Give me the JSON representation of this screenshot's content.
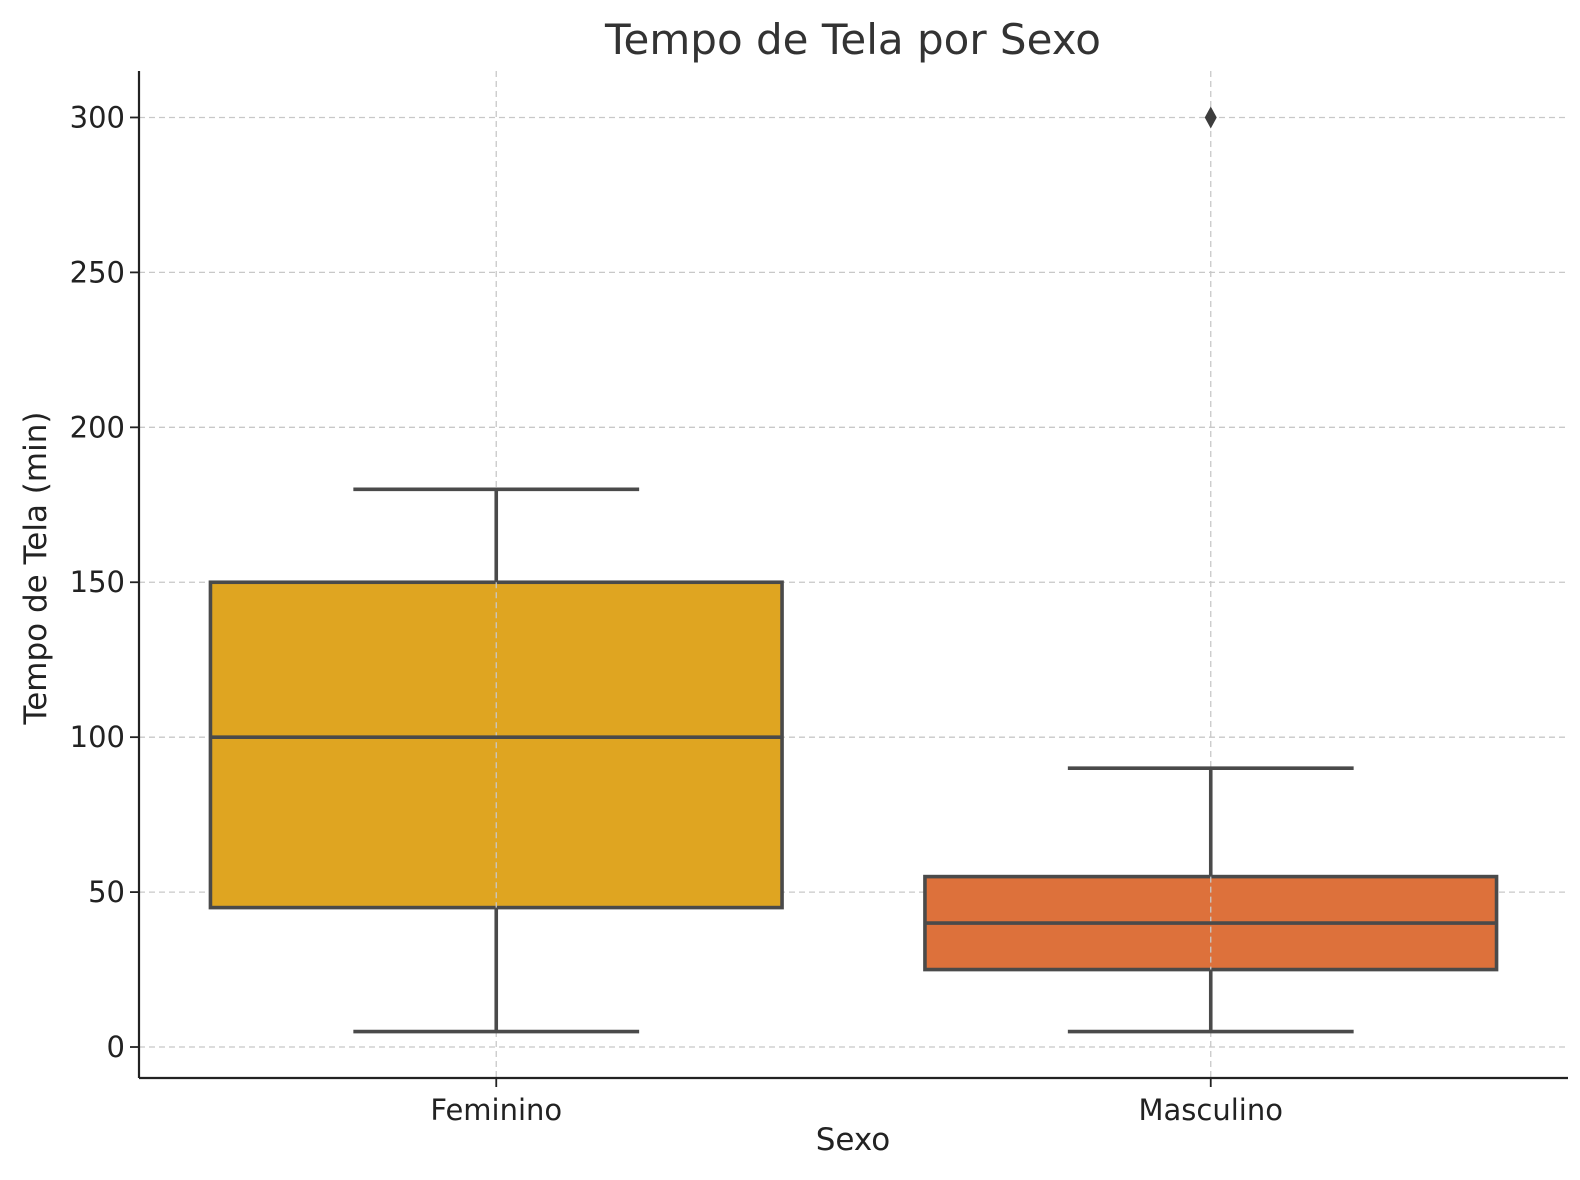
{
  "chart_data": {
    "type": "box",
    "title": "Tempo de Tela por Sexo",
    "xlabel": "Sexo",
    "ylabel": "Tempo de Tela (min)",
    "ylim": [
      -10,
      315
    ],
    "yticks": [
      0,
      50,
      100,
      150,
      200,
      250,
      300
    ],
    "ytick_labels": [
      "0",
      "50",
      "100",
      "150",
      "200",
      "250",
      "300"
    ],
    "categories": [
      "Feminino",
      "Masculino"
    ],
    "grid": true,
    "colors": [
      "#dfa521",
      "#dd713b"
    ],
    "boxes": [
      {
        "name": "Feminino",
        "whisker_low": 5,
        "q1": 45,
        "median": 100,
        "q3": 150,
        "whisker_high": 180,
        "outliers": []
      },
      {
        "name": "Masculino",
        "whisker_low": 5,
        "q1": 25,
        "median": 40,
        "q3": 55,
        "whisker_high": 90,
        "outliers": [
          300
        ]
      }
    ]
  }
}
